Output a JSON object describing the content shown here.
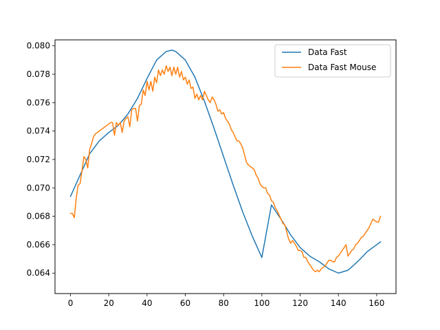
{
  "chart_data": {
    "type": "line",
    "title": "",
    "xlabel": "",
    "ylabel": "",
    "xlim": [
      -8.1,
      170.1
    ],
    "ylim": [
      0.06256,
      0.08042
    ],
    "xticks": [
      0,
      20,
      40,
      60,
      80,
      100,
      120,
      140,
      160
    ],
    "yticks": [
      0.064,
      0.066,
      0.068,
      0.07,
      0.072,
      0.074,
      0.076,
      0.078,
      0.08
    ],
    "xtick_labels": [
      "0",
      "20",
      "40",
      "60",
      "80",
      "100",
      "120",
      "140",
      "160"
    ],
    "ytick_labels": [
      "0.064",
      "0.066",
      "0.068",
      "0.070",
      "0.072",
      "0.074",
      "0.076",
      "0.078",
      "0.080"
    ],
    "grid": false,
    "legend_position": "top-right",
    "series": [
      {
        "name": "Data Fast",
        "color": "#1f77b4",
        "x": [
          0,
          5,
          10,
          15,
          20,
          25,
          30,
          35,
          40,
          45,
          50,
          53,
          55,
          60,
          65,
          70,
          75,
          80,
          85,
          90,
          95,
          100,
          105,
          110,
          115,
          120,
          125,
          130,
          135,
          140,
          145,
          150,
          155,
          160,
          162
        ],
        "y": [
          0.0694,
          0.0709,
          0.0724,
          0.0733,
          0.0739,
          0.0744,
          0.0752,
          0.0763,
          0.0777,
          0.079,
          0.0796,
          0.0797,
          0.0796,
          0.079,
          0.0778,
          0.0761,
          0.0742,
          0.0722,
          0.0702,
          0.0683,
          0.0666,
          0.0651,
          0.0688,
          0.0678,
          0.0667,
          0.0658,
          0.0652,
          0.0648,
          0.0643,
          0.064,
          0.0642,
          0.0648,
          0.0655,
          0.066,
          0.0662
        ]
      },
      {
        "name": "Data Fast Mouse",
        "color": "#ff7f0e",
        "x": [
          0,
          1,
          2,
          3,
          4,
          5,
          6,
          7,
          8,
          9,
          10,
          11,
          12,
          13,
          14,
          15,
          16,
          17,
          18,
          19,
          20,
          21,
          22,
          23,
          24,
          25,
          26,
          27,
          28,
          29,
          30,
          31,
          32,
          33,
          34,
          35,
          36,
          37,
          38,
          39,
          40,
          41,
          42,
          43,
          44,
          45,
          46,
          47,
          48,
          49,
          50,
          51,
          52,
          53,
          54,
          55,
          56,
          57,
          58,
          59,
          60,
          61,
          62,
          63,
          64,
          65,
          66,
          67,
          68,
          69,
          70,
          71,
          72,
          73,
          74,
          75,
          76,
          77,
          78,
          79,
          80,
          81,
          82,
          83,
          84,
          85,
          86,
          87,
          88,
          89,
          90,
          91,
          92,
          93,
          94,
          95,
          96,
          97,
          98,
          99,
          100,
          101,
          102,
          103,
          104,
          105,
          106,
          107,
          108,
          109,
          110,
          111,
          112,
          113,
          114,
          115,
          116,
          117,
          118,
          119,
          120,
          121,
          122,
          123,
          124,
          125,
          126,
          127,
          128,
          129,
          130,
          131,
          132,
          133,
          134,
          135,
          136,
          137,
          138,
          139,
          140,
          141,
          142,
          143,
          144,
          145,
          146,
          147,
          148,
          149,
          150,
          151,
          152,
          153,
          154,
          155,
          156,
          157,
          158,
          159,
          160,
          161,
          162
        ],
        "y": [
          0.0682,
          0.0682,
          0.0679,
          0.0693,
          0.0702,
          0.0703,
          0.0712,
          0.0722,
          0.072,
          0.0714,
          0.0727,
          0.0731,
          0.0736,
          0.0738,
          0.0739,
          0.074,
          0.0741,
          0.0742,
          0.0743,
          0.0744,
          0.0745,
          0.0746,
          0.0746,
          0.0737,
          0.0746,
          0.0744,
          0.0746,
          0.0739,
          0.0747,
          0.0749,
          0.075,
          0.0743,
          0.0755,
          0.0756,
          0.0756,
          0.0747,
          0.0758,
          0.0759,
          0.0769,
          0.0765,
          0.0775,
          0.0769,
          0.0775,
          0.0768,
          0.0778,
          0.0774,
          0.0783,
          0.0779,
          0.0783,
          0.078,
          0.0786,
          0.0782,
          0.0785,
          0.0779,
          0.0785,
          0.078,
          0.0785,
          0.0778,
          0.0782,
          0.0776,
          0.0778,
          0.0773,
          0.0776,
          0.077,
          0.0771,
          0.0763,
          0.0766,
          0.0762,
          0.0765,
          0.0762,
          0.0768,
          0.0765,
          0.0762,
          0.076,
          0.0764,
          0.0762,
          0.0759,
          0.0754,
          0.0755,
          0.0752,
          0.0753,
          0.0749,
          0.0747,
          0.0745,
          0.0741,
          0.0739,
          0.0736,
          0.0733,
          0.0733,
          0.0731,
          0.0728,
          0.0723,
          0.0718,
          0.0716,
          0.0715,
          0.0714,
          0.0713,
          0.0709,
          0.0707,
          0.0703,
          0.0701,
          0.07,
          0.07,
          0.0696,
          0.0695,
          0.0691,
          0.069,
          0.0686,
          0.0684,
          0.0681,
          0.0678,
          0.0675,
          0.0674,
          0.0669,
          0.0664,
          0.0661,
          0.0663,
          0.0661,
          0.0659,
          0.0656,
          0.0656,
          0.0655,
          0.0651,
          0.0651,
          0.0648,
          0.0646,
          0.0644,
          0.0642,
          0.0641,
          0.0642,
          0.0641,
          0.0643,
          0.0644,
          0.0645,
          0.0647,
          0.0649,
          0.0649,
          0.0648,
          0.0648,
          0.0651,
          0.0652,
          0.0654,
          0.0656,
          0.0658,
          0.066,
          0.0652,
          0.0654,
          0.0656,
          0.0657,
          0.066,
          0.0661,
          0.0663,
          0.0665,
          0.0666,
          0.0668,
          0.067,
          0.0672,
          0.0675,
          0.0678,
          0.0677,
          0.0676,
          0.0676,
          0.068
        ]
      }
    ]
  }
}
